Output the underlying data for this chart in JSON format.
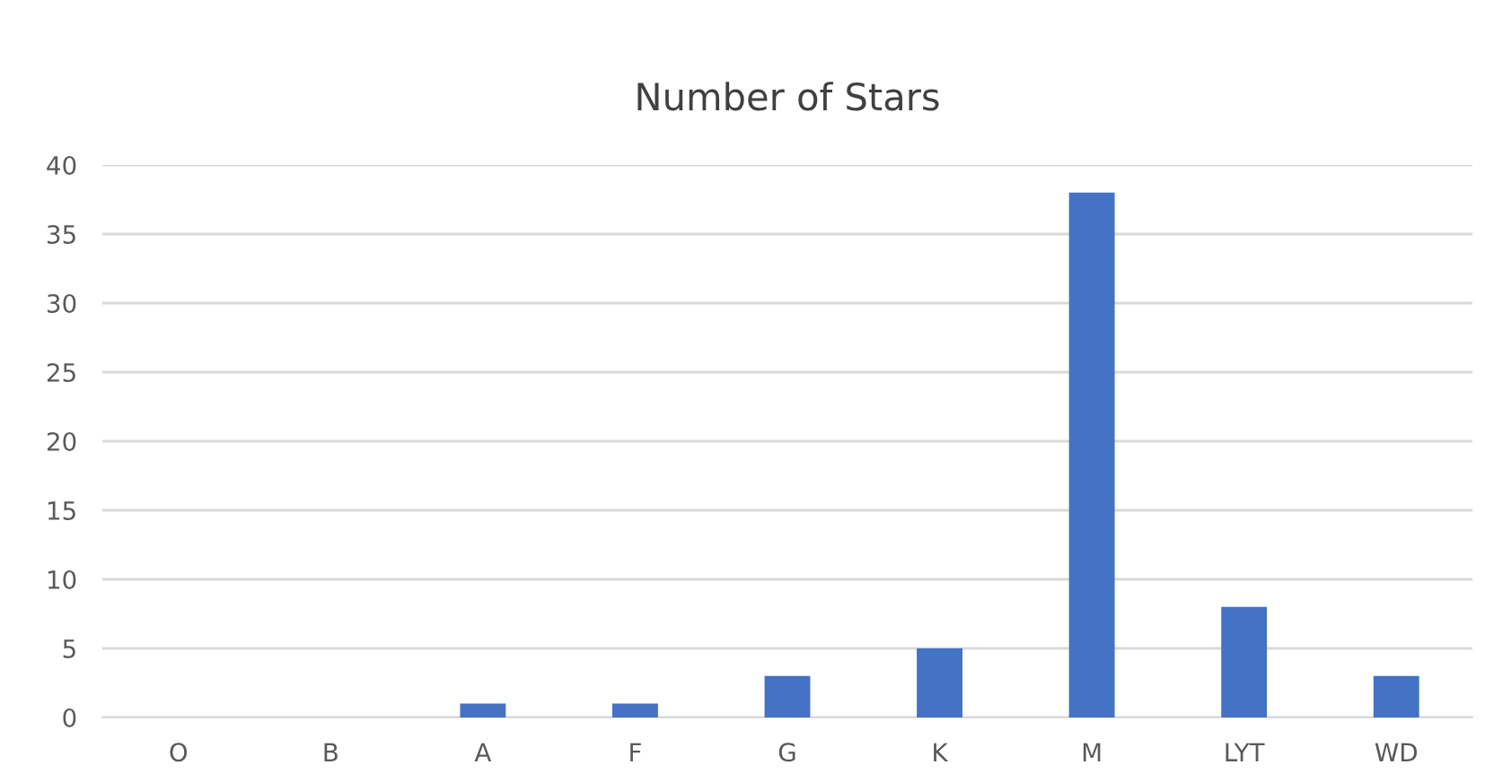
{
  "chart_data": {
    "type": "bar",
    "title": "Number of Stars",
    "categories": [
      "O",
      "B",
      "A",
      "F",
      "G",
      "K",
      "M",
      "LYT",
      "WD"
    ],
    "values": [
      0,
      0,
      1,
      1,
      3,
      5,
      38,
      8,
      3
    ],
    "color": "#4472c4",
    "ylim": [
      0,
      40
    ],
    "yticks": [
      0,
      5,
      10,
      15,
      20,
      25,
      30,
      35,
      40
    ],
    "grid": "y"
  }
}
